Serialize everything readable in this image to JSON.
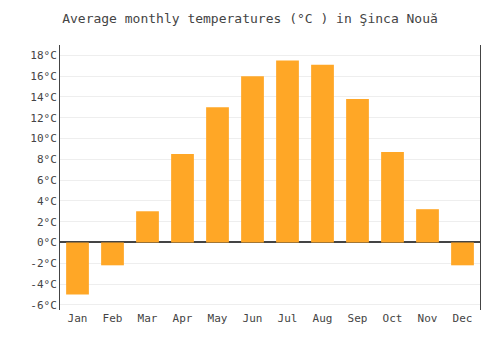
{
  "chart_data": {
    "type": "bar",
    "title": "Average monthly temperatures (°C ) in Şinca Nouă",
    "categories": [
      "Jan",
      "Feb",
      "Mar",
      "Apr",
      "May",
      "Jun",
      "Jul",
      "Aug",
      "Sep",
      "Oct",
      "Nov",
      "Dec"
    ],
    "values": [
      -5.0,
      -2.2,
      3.0,
      8.5,
      13.0,
      16.0,
      17.5,
      17.1,
      13.8,
      8.7,
      3.2,
      -2.2
    ],
    "color": "#FFA726",
    "ylim": [
      -6.5,
      19.0
    ],
    "yticks": [
      {
        "value": -6,
        "label": "-6°C"
      },
      {
        "value": -4,
        "label": "-4°C"
      },
      {
        "value": -2,
        "label": "-2°C"
      },
      {
        "value": 0,
        "label": "0°C"
      },
      {
        "value": 2,
        "label": "2°C"
      },
      {
        "value": 4,
        "label": "4°C"
      },
      {
        "value": 6,
        "label": "6°C"
      },
      {
        "value": 8,
        "label": "8°C"
      },
      {
        "value": 10,
        "label": "10°C"
      },
      {
        "value": 12,
        "label": "12°C"
      },
      {
        "value": 14,
        "label": "14°C"
      },
      {
        "value": 16,
        "label": "16°C"
      },
      {
        "value": 18,
        "label": "18°C"
      }
    ],
    "grid": true
  }
}
